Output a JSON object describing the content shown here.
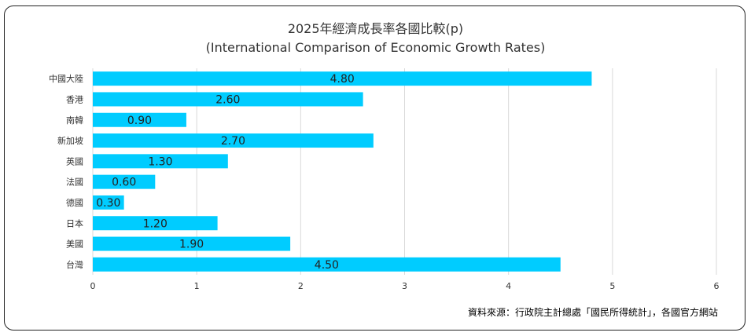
{
  "chart_data": {
    "type": "bar",
    "orientation": "horizontal",
    "title": "2025年經濟成長率各國比較(p)",
    "subtitle": "(International Comparison of Economic Growth Rates)",
    "categories": [
      "中國大陸",
      "香港",
      "南韓",
      "新加坡",
      "英國",
      "法國",
      "德國",
      "日本",
      "美國",
      "台灣"
    ],
    "values": [
      4.8,
      2.6,
      0.9,
      2.7,
      1.3,
      0.6,
      0.3,
      1.2,
      1.9,
      4.5
    ],
    "data_labels": [
      "4.80",
      "2.60",
      "0.90",
      "2.70",
      "1.30",
      "0.60",
      "0.30",
      "1.20",
      "1.90",
      "4.50"
    ],
    "xlim": [
      0,
      6
    ],
    "xticks": [
      "0",
      "1",
      "2",
      "3",
      "4",
      "5",
      "6"
    ],
    "grid": true,
    "bar_color": "#00CCFF",
    "source": "資料來源：行政院主計總處「國民所得統計」，各國官方網站"
  }
}
